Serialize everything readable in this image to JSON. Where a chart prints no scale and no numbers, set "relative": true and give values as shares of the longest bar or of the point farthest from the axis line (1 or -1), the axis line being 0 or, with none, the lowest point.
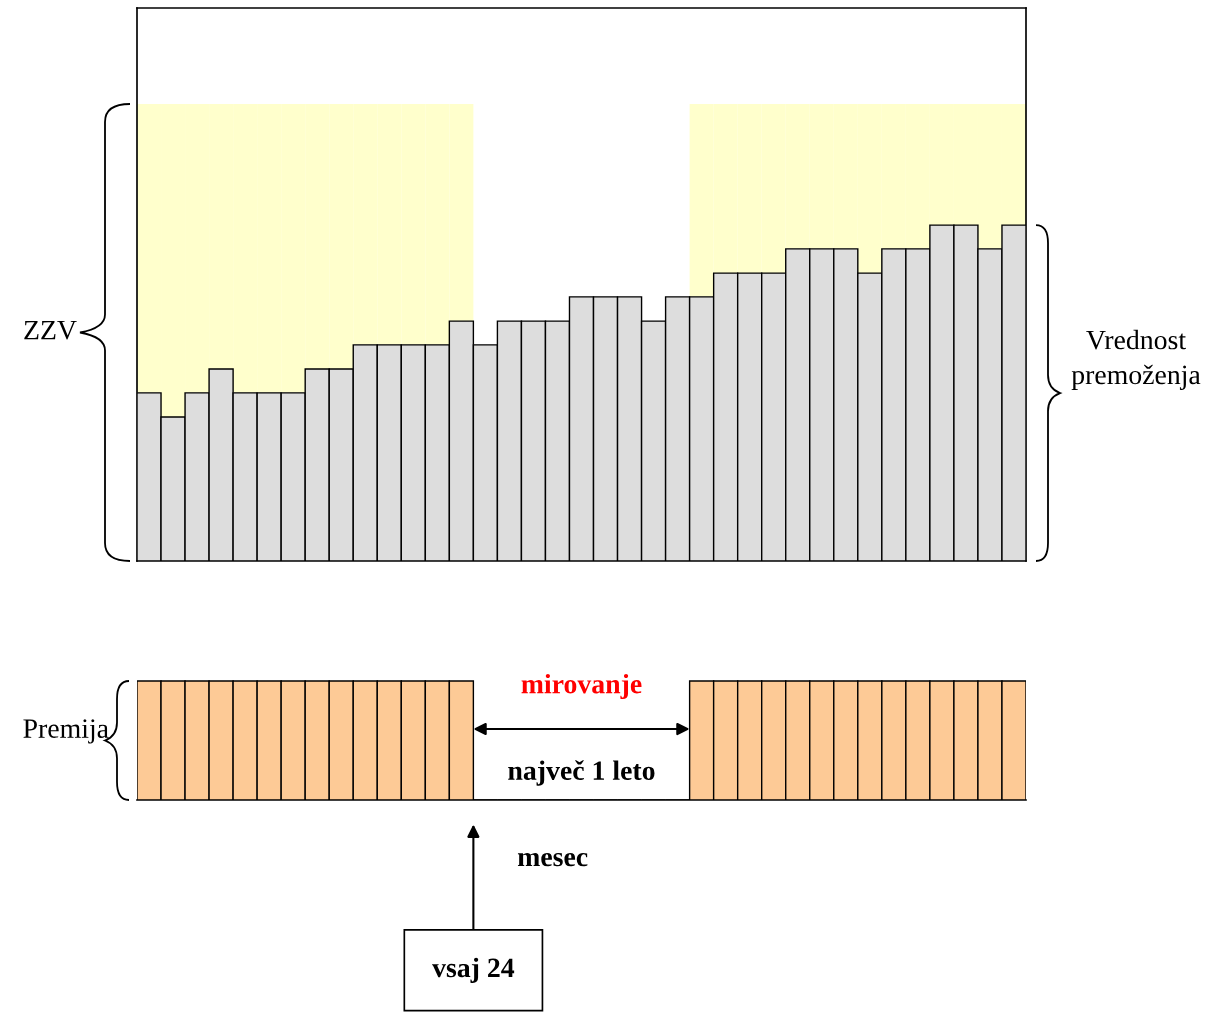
{
  "chart_data": [
    {
      "type": "bar",
      "relative": true,
      "stacked": true,
      "ylabel": "ZZV",
      "y2label": "Vrednost\npremoženja",
      "categories": [
        null,
        null,
        null,
        null,
        null,
        null,
        null,
        null,
        null,
        null,
        null,
        null,
        null,
        null,
        null,
        null,
        null,
        null,
        null,
        null,
        null,
        null,
        null,
        null,
        null,
        null,
        null,
        null,
        null,
        null,
        null,
        null,
        null,
        null,
        null,
        null,
        null
      ],
      "series": [
        {
          "color": "#dddddd",
          "values": [
            0.368,
            0.315,
            0.368,
            0.42,
            0.368,
            0.368,
            0.368,
            0.42,
            0.42,
            0.473,
            0.473,
            0.473,
            0.473,
            0.525,
            0.473,
            0.525,
            0.525,
            0.525,
            0.578,
            0.578,
            0.578,
            0.525,
            0.578,
            0.578,
            0.63,
            0.63,
            0.63,
            0.683,
            0.683,
            0.683,
            0.63,
            0.683,
            0.683,
            0.735,
            0.735,
            0.683,
            0.735
          ]
        },
        {
          "color": "#ffffcc",
          "values": [
            0.632,
            0.685,
            0.632,
            0.58,
            0.632,
            0.632,
            0.632,
            0.58,
            0.58,
            0.527,
            0.527,
            0.527,
            0.527,
            0.475,
            0,
            0,
            0,
            0,
            0,
            0,
            0,
            0,
            0,
            0.422,
            0.37,
            0.37,
            0.37,
            0.317,
            0.317,
            0.317,
            0.37,
            0.317,
            0.317,
            0.265,
            0.265,
            0.317,
            0.265
          ]
        }
      ]
    },
    {
      "type": "bar",
      "relative": true,
      "ylabel": "Premija",
      "categories": [
        null,
        null,
        null,
        null,
        null,
        null,
        null,
        null,
        null,
        null,
        null,
        null,
        null,
        null,
        null,
        null,
        null,
        null,
        null,
        null,
        null,
        null,
        null,
        null,
        null,
        null,
        null,
        null,
        null,
        null,
        null,
        null,
        null,
        null,
        null,
        null,
        null
      ],
      "series": [
        {
          "color": "#fdca96",
          "values": [
            1,
            1,
            1,
            1,
            1,
            1,
            1,
            1,
            1,
            1,
            1,
            1,
            1,
            1,
            0,
            0,
            0,
            0,
            0,
            0,
            0,
            0,
            0,
            1,
            1,
            1,
            1,
            1,
            1,
            1,
            1,
            1,
            1,
            1,
            1,
            1,
            1
          ]
        }
      ],
      "annotations": [
        "mirovanje",
        "največ 1 leto",
        "mesec",
        "vsaj 24"
      ]
    }
  ]
}
